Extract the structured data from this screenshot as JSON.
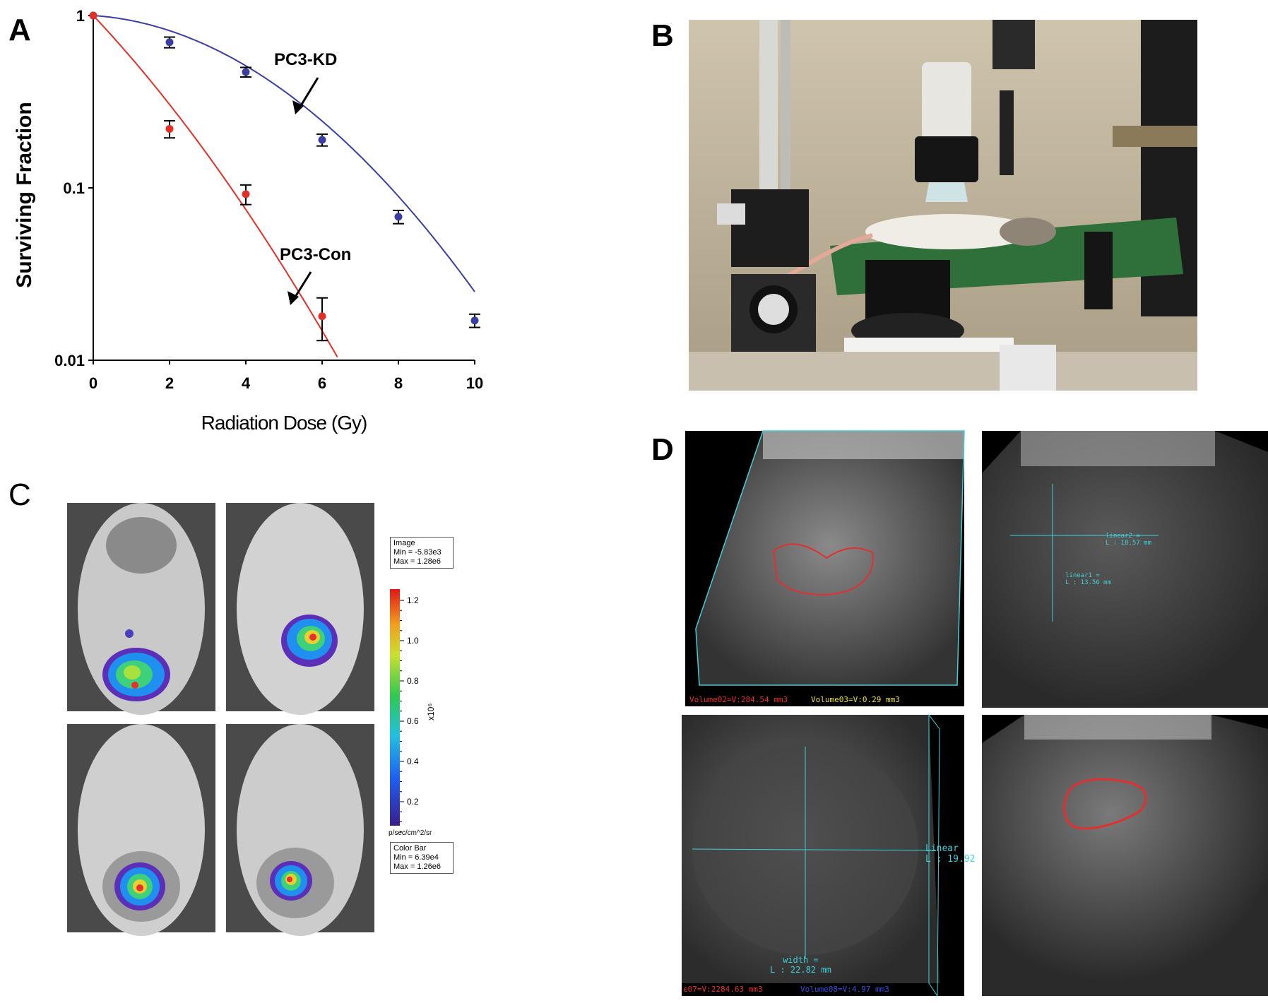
{
  "panels": {
    "a": "A",
    "b": "B",
    "c": "C",
    "d": "D"
  },
  "chart_data": {
    "type": "scatter",
    "ylabel": "Surviving Fraction",
    "xlabel": "Radiation Dose (Gy)",
    "yscale": "log",
    "xlim": [
      0,
      10
    ],
    "ylim": [
      0.01,
      1
    ],
    "x_ticks": [
      "0",
      "2",
      "4",
      "6",
      "8",
      "10"
    ],
    "y_ticks": [
      "1",
      "0.1",
      "0.01"
    ],
    "series": [
      {
        "name": "PC3-KD",
        "color": "#3a3ea0",
        "x": [
          0,
          2,
          4,
          6,
          8,
          10
        ],
        "y": [
          1.0,
          0.7,
          0.47,
          0.19,
          0.068,
          0.017
        ],
        "err": [
          0,
          0.05,
          0.03,
          0.015,
          0.006,
          0.0015
        ],
        "fit": {
          "alpha": 0.034,
          "beta": 0.0335
        }
      },
      {
        "name": "PC3-Con",
        "color": "#e0302a",
        "x": [
          0,
          2,
          4,
          6
        ],
        "y": [
          1.0,
          0.22,
          0.092,
          0.018
        ],
        "err": [
          0,
          0.025,
          0.012,
          0.005
        ],
        "fit": {
          "alpha": 0.54,
          "beta": 0.027
        }
      }
    ]
  },
  "panelC": {
    "image_box": [
      "Image",
      "Min = -5.83e3",
      "Max = 1.28e6"
    ],
    "scale_ticks": [
      "1.2",
      "1.0",
      "0.8",
      "0.6",
      "0.4",
      "0.2"
    ],
    "scale_exp": "x10⁶",
    "scale_unit": "p/sec/cm^2/sr",
    "colorbar_box": [
      "Color Bar",
      "Min = 6.39e4",
      "Max = 1.26e6"
    ]
  },
  "panelD": {
    "top_left_caption_red": "Volume02=V:284.54 mm3",
    "top_left_caption_yellow": "Volume03=V:0.29 mm3",
    "top_right_label1": "linear2 =",
    "top_right_label1b": "L : 18.57 mm",
    "top_right_label2": "linear1 =",
    "top_right_label2b": "L : 13.56 mm",
    "bottom_left_linear": "Linear",
    "bottom_left_linear_val": "L : 19.92",
    "bottom_left_width": "width =",
    "bottom_left_width_val": "L : 22.82 mm",
    "bottom_left_caption_red": "e07=V:2284.63 mm3",
    "bottom_left_caption_blue": "Volume08=V:4.97 mm3"
  },
  "colors": {
    "kd": "#3a3ea0",
    "con": "#e0302a",
    "cyan": "#3fd0d8"
  }
}
